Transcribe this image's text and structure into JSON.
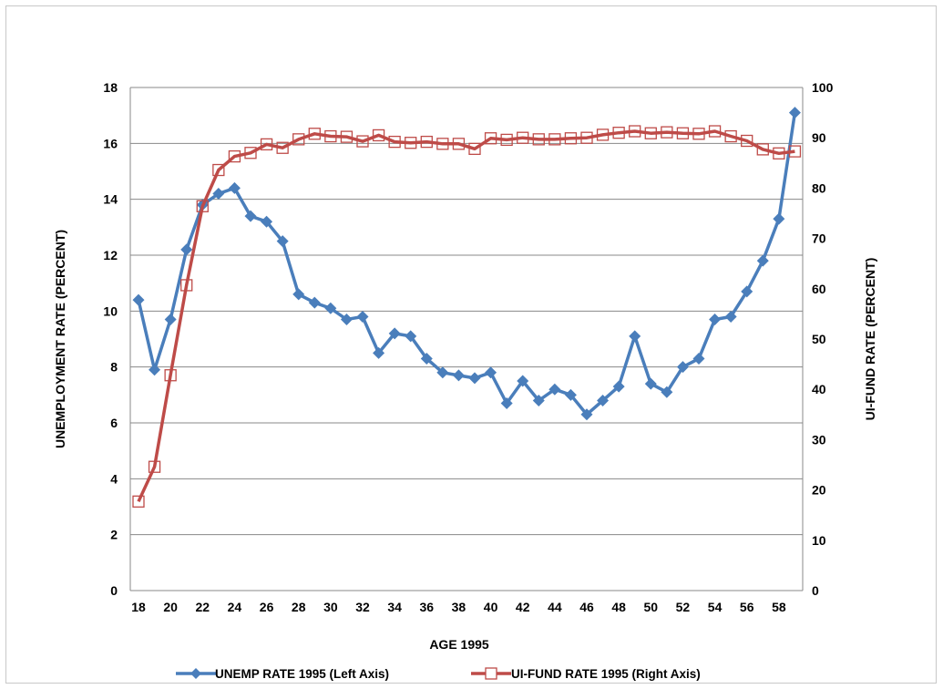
{
  "chart_data": {
    "type": "line",
    "xlabel": "AGE 1995",
    "ylabel_left": "UNEMPLOYMENT RATE (PERCENT)",
    "ylabel_right": "UI-FUND RATE (PERCENT)",
    "xlim": [
      18,
      59
    ],
    "ylim_left": [
      0,
      18
    ],
    "ylim_right": [
      0,
      100
    ],
    "x_ticks": [
      18,
      20,
      22,
      24,
      26,
      28,
      30,
      32,
      34,
      36,
      38,
      40,
      42,
      44,
      46,
      48,
      50,
      52,
      54,
      56,
      58
    ],
    "y_ticks_left": [
      0,
      2,
      4,
      6,
      8,
      10,
      12,
      14,
      16,
      18
    ],
    "y_ticks_right": [
      0,
      10,
      20,
      30,
      40,
      50,
      60,
      70,
      80,
      90,
      100
    ],
    "grid": "horizontal",
    "legend_position": "bottom",
    "x": [
      18,
      19,
      20,
      21,
      22,
      23,
      24,
      25,
      26,
      27,
      28,
      29,
      30,
      31,
      32,
      33,
      34,
      35,
      36,
      37,
      38,
      39,
      40,
      41,
      42,
      43,
      44,
      45,
      46,
      47,
      48,
      49,
      50,
      51,
      52,
      53,
      54,
      55,
      56,
      57,
      58,
      59
    ],
    "series": [
      {
        "name": "UNEMP RATE 1995 (Left Axis)",
        "axis": "left",
        "color": "#4a7ebb",
        "marker": "diamond",
        "values": [
          10.4,
          7.9,
          9.7,
          12.2,
          13.8,
          14.2,
          14.4,
          13.4,
          13.2,
          12.5,
          10.6,
          10.3,
          10.1,
          9.7,
          9.8,
          8.5,
          9.2,
          9.1,
          8.3,
          7.8,
          7.7,
          7.6,
          7.8,
          6.7,
          7.5,
          6.8,
          7.2,
          7.0,
          6.3,
          6.8,
          7.3,
          9.1,
          7.4,
          7.1,
          8.0,
          8.3,
          9.7,
          9.8,
          10.7,
          11.8,
          13.3,
          17.1
        ]
      },
      {
        "name": "UI-FUND RATE 1995 (Right Axis)",
        "axis": "right",
        "color": "#be4b48",
        "marker": "square",
        "values": [
          17.7,
          24.6,
          42.8,
          60.7,
          76.4,
          83.6,
          86.3,
          87.0,
          88.7,
          88.0,
          89.7,
          90.8,
          90.3,
          90.2,
          89.3,
          90.5,
          89.2,
          89.0,
          89.2,
          88.8,
          88.8,
          87.8,
          89.9,
          89.6,
          90.0,
          89.7,
          89.7,
          89.9,
          90.0,
          90.6,
          91.0,
          91.3,
          90.9,
          91.1,
          90.9,
          90.8,
          91.3,
          90.3,
          89.4,
          87.7,
          86.9,
          87.3
        ]
      }
    ]
  }
}
